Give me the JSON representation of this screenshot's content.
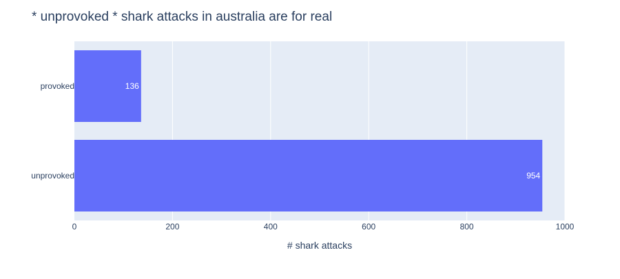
{
  "chart_data": {
    "type": "bar",
    "orientation": "horizontal",
    "title": "* unprovoked * shark attacks in australia are for real",
    "xlabel": "# shark attacks",
    "ylabel": "",
    "categories": [
      "unprovoked",
      "provoked"
    ],
    "values": [
      954,
      136
    ],
    "data_labels": [
      "954",
      "136"
    ],
    "xlim": [
      0,
      1000
    ],
    "x_ticks": [
      0,
      200,
      400,
      600,
      800,
      1000
    ],
    "x_tick_labels": [
      "0",
      "200",
      "400",
      "600",
      "800",
      "1000"
    ],
    "grid": true,
    "legend": "none"
  },
  "colors": {
    "bar": "#636efa",
    "plot_background": "#e5ecf6",
    "grid": "#ffffff",
    "text": "#2a3f5f",
    "data_label_text": "#ffffff"
  }
}
